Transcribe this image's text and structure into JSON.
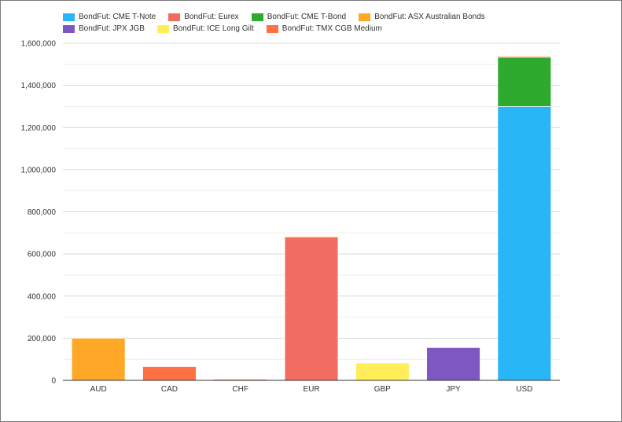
{
  "chart_data": {
    "type": "bar",
    "stacked": true,
    "categories": [
      "AUD",
      "CAD",
      "CHF",
      "EUR",
      "GBP",
      "JPY",
      "USD"
    ],
    "y_ticks": [
      "0",
      "200,000",
      "400,000",
      "600,000",
      "800,000",
      "1,000,000",
      "1,200,000",
      "1,400,000",
      "1,600,000"
    ],
    "ylim": [
      0,
      1600000
    ],
    "grid": true,
    "legend_position": "top-left",
    "series": [
      {
        "name": "BondFut: CME T-Note",
        "color": "#29b6f6",
        "values": [
          0,
          0,
          0,
          0,
          0,
          0,
          1300000
        ]
      },
      {
        "name": "BondFut: Eurex",
        "color": "#f26d61",
        "values": [
          0,
          0,
          0,
          680000,
          0,
          0,
          0
        ]
      },
      {
        "name": "BondFut: CME T-Bond",
        "color": "#2eaa2e",
        "values": [
          0,
          0,
          0,
          0,
          0,
          0,
          235000
        ]
      },
      {
        "name": "BondFut: ASX Australian Bonds",
        "color": "#ffa726",
        "values": [
          200000,
          0,
          0,
          3000,
          0,
          0,
          2000
        ]
      },
      {
        "name": "BondFut: JPX JGB",
        "color": "#7e57c2",
        "values": [
          0,
          0,
          0,
          0,
          0,
          155000,
          0
        ]
      },
      {
        "name": "BondFut: ICE Long Gilt",
        "color": "#ffee58",
        "values": [
          0,
          0,
          0,
          0,
          82000,
          0,
          0
        ]
      },
      {
        "name": "BondFut: TMX CGB Medium",
        "color": "#ff7043",
        "values": [
          0,
          65000,
          5000,
          0,
          0,
          3000,
          3000
        ]
      }
    ]
  }
}
